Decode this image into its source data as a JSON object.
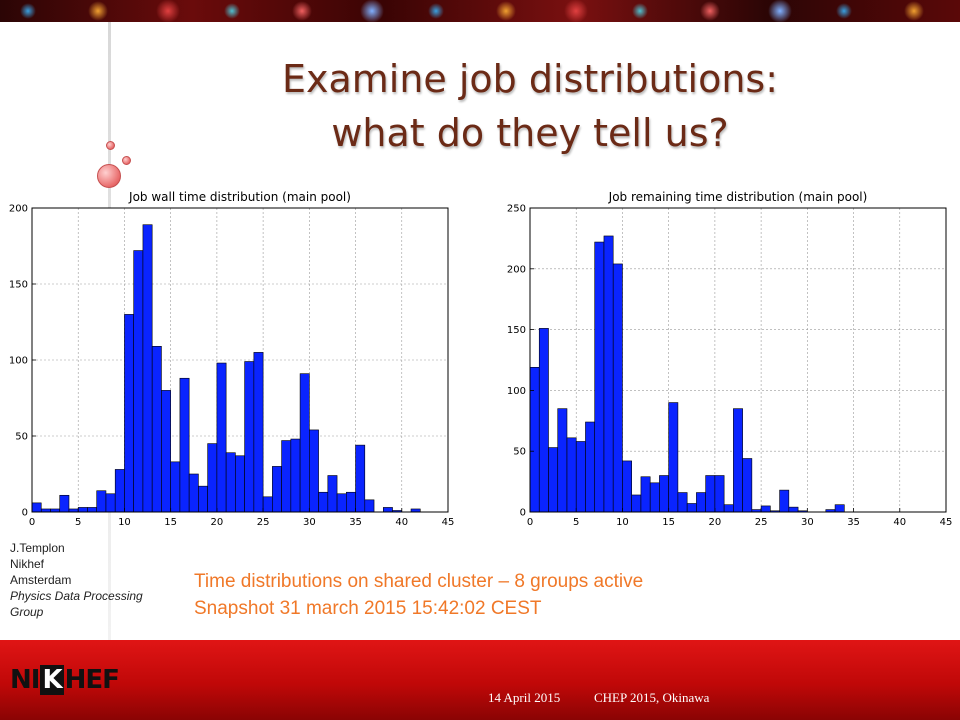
{
  "slide": {
    "title_line1": "Examine job distributions:",
    "title_line2": "what do they tell us?",
    "caption_line1": "Time distributions on shared cluster – 8 groups active",
    "caption_line2": "Snapshot 31 march 2015 15:42:02 CEST",
    "author": {
      "name": "J.Templon",
      "org": "Nikhef",
      "city": "Amsterdam",
      "group_line1": "Physics Data Processing",
      "group_line2": "Group"
    },
    "logo_text_left": "NI",
    "logo_text_mid": "K",
    "logo_text_right": "HEF",
    "footer_date": "14 April 2015",
    "footer_event": "CHEP 2015, Okinawa"
  },
  "colors": {
    "title": "#6b2a16",
    "caption": "#f07828",
    "bar_fill": "#0a24ff",
    "bar_stroke": "#000000",
    "band": "#cc0a0a"
  },
  "chart_data": [
    {
      "type": "bar",
      "title": "Job wall time distribution (main pool)",
      "bin_width": 1,
      "x": [
        0,
        1,
        2,
        3,
        4,
        5,
        6,
        7,
        8,
        9,
        10,
        11,
        12,
        13,
        14,
        15,
        16,
        17,
        18,
        19,
        20,
        21,
        22,
        23,
        24,
        25,
        26,
        27,
        28,
        29,
        30,
        31,
        32,
        33,
        34,
        35,
        36,
        37,
        38,
        39,
        40,
        41
      ],
      "values": [
        6,
        2,
        2,
        11,
        2,
        3,
        3,
        14,
        12,
        28,
        130,
        172,
        189,
        109,
        80,
        33,
        88,
        25,
        17,
        45,
        98,
        39,
        37,
        99,
        105,
        10,
        30,
        47,
        48,
        91,
        54,
        13,
        24,
        12,
        13,
        44,
        8,
        0,
        3,
        1,
        0,
        2
      ],
      "xlim": [
        0,
        45
      ],
      "ylim": [
        0,
        200
      ],
      "xticks": [
        0,
        5,
        10,
        15,
        20,
        25,
        30,
        35,
        40,
        45
      ],
      "yticks": [
        0,
        50,
        100,
        150,
        200
      ],
      "grid": true
    },
    {
      "type": "bar",
      "title": "Job remaining time distribution (main pool)",
      "bin_width": 1,
      "x": [
        0,
        1,
        2,
        3,
        4,
        5,
        6,
        7,
        8,
        9,
        10,
        11,
        12,
        13,
        14,
        15,
        16,
        17,
        18,
        19,
        20,
        21,
        22,
        23,
        24,
        25,
        26,
        27,
        28,
        29,
        30,
        31,
        32,
        33
      ],
      "values": [
        119,
        151,
        53,
        85,
        61,
        58,
        74,
        222,
        227,
        204,
        42,
        14,
        29,
        24,
        30,
        90,
        16,
        7,
        16,
        30,
        30,
        6,
        85,
        44,
        2,
        5,
        1,
        18,
        4,
        1,
        0,
        0,
        2,
        6
      ],
      "xlim": [
        0,
        45
      ],
      "ylim": [
        0,
        250
      ],
      "xticks": [
        0,
        5,
        10,
        15,
        20,
        25,
        30,
        35,
        40,
        45
      ],
      "yticks": [
        0,
        50,
        100,
        150,
        200,
        250
      ],
      "grid": true
    }
  ]
}
